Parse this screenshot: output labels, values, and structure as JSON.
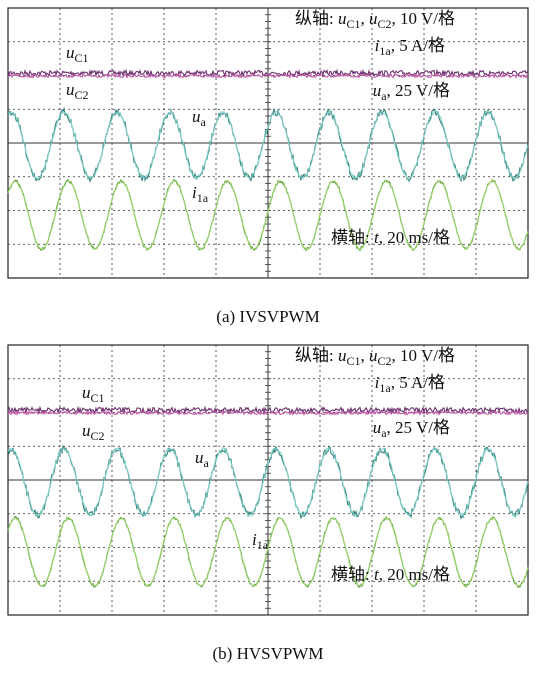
{
  "panels": [
    {
      "caption": "(a) IVSVPWM",
      "vertical": {
        "prefix": "纵轴: ",
        "var1": "u",
        "sub1": "C1",
        "sep": ", ",
        "var2": "u",
        "sub2": "C2",
        "scale": ", 10 V/格"
      },
      "current": {
        "var": "i",
        "sub": "1a",
        "scale": ", 5 A/格"
      },
      "voltage": {
        "var": "u",
        "sub": "a",
        "scale": ", 25 V/格"
      },
      "horizontal": {
        "prefix": "横轴: ",
        "var": "t",
        "scale": ", 20 ms/格"
      },
      "labels": [
        {
          "var": "u",
          "sub": "C1"
        },
        {
          "var": "u",
          "sub": "C2"
        },
        {
          "var": "u",
          "sub": "a"
        },
        {
          "var": "i",
          "sub": "1a"
        }
      ]
    },
    {
      "caption": "(b) HVSVPWM",
      "vertical": {
        "prefix": "纵轴: ",
        "var1": "u",
        "sub1": "C1",
        "sep": ", ",
        "var2": "u",
        "sub2": "C2",
        "scale": ", 10 V/格"
      },
      "current": {
        "var": "i",
        "sub": "1a",
        "scale": ", 5 A/格"
      },
      "voltage": {
        "var": "u",
        "sub": "a",
        "scale": ", 25 V/格"
      },
      "horizontal": {
        "prefix": "横轴: ",
        "var": "t",
        "scale": ", 20 ms/格"
      },
      "labels": [
        {
          "var": "u",
          "sub": "C1"
        },
        {
          "var": "u",
          "sub": "C2"
        },
        {
          "var": "u",
          "sub": "a"
        },
        {
          "var": "i",
          "sub": "1a"
        }
      ]
    }
  ]
}
